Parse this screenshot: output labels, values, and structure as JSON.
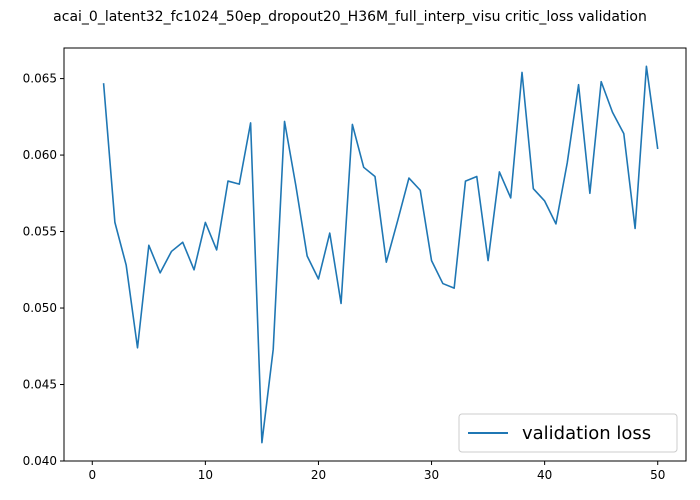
{
  "chart_data": {
    "type": "line",
    "title": "acai_0_latent32_fc1024_50ep_dropout20_H36M_full_interp_visu critic_loss validation",
    "xlabel": "",
    "ylabel": "",
    "xlim": [
      -2.5,
      52.5
    ],
    "ylim": [
      0.04,
      0.067
    ],
    "x_ticks": [
      0,
      10,
      20,
      30,
      40,
      50
    ],
    "x_tick_labels": [
      "0",
      "10",
      "20",
      "30",
      "40",
      "50"
    ],
    "y_ticks": [
      0.04,
      0.045,
      0.05,
      0.055,
      0.06,
      0.065
    ],
    "y_tick_labels": [
      "0.040",
      "0.045",
      "0.050",
      "0.055",
      "0.060",
      "0.065"
    ],
    "grid": false,
    "legend_position": "lower-right",
    "line_color": "#1f77b4",
    "series": [
      {
        "name": "validation loss",
        "x": [
          1,
          2,
          3,
          4,
          5,
          6,
          7,
          8,
          9,
          10,
          11,
          12,
          13,
          14,
          15,
          16,
          17,
          18,
          19,
          20,
          21,
          22,
          23,
          24,
          25,
          26,
          27,
          28,
          29,
          30,
          31,
          32,
          33,
          34,
          35,
          36,
          37,
          38,
          39,
          40,
          41,
          42,
          43,
          44,
          45,
          46,
          47,
          48,
          49,
          50
        ],
        "values": [
          0.0647,
          0.0556,
          0.0528,
          0.0474,
          0.0541,
          0.0523,
          0.0537,
          0.0543,
          0.0525,
          0.0556,
          0.0538,
          0.0583,
          0.0581,
          0.0621,
          0.0412,
          0.0473,
          0.0622,
          0.058,
          0.0534,
          0.0519,
          0.0549,
          0.0503,
          0.062,
          0.0592,
          0.0586,
          0.053,
          0.0557,
          0.0585,
          0.0577,
          0.0531,
          0.0516,
          0.0513,
          0.0583,
          0.0586,
          0.0531,
          0.0589,
          0.0572,
          0.0654,
          0.0578,
          0.057,
          0.0555,
          0.0595,
          0.0646,
          0.0575,
          0.0648,
          0.0628,
          0.0614,
          0.0552,
          0.0658,
          0.0604
        ]
      }
    ]
  }
}
